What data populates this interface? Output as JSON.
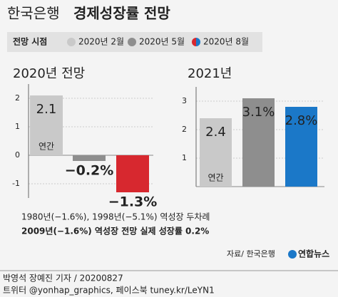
{
  "header": {
    "title_light": "한국은행",
    "title_bold": "경제성장률 전망"
  },
  "legend": {
    "title": "전망 시점",
    "items": [
      {
        "name": "2020년 2월",
        "color": "#c9c9c9"
      },
      {
        "name": "2020년 5월",
        "color": "#8e8e8e"
      },
      {
        "name": "2020년 8월",
        "colors": [
          "#d7282f",
          "#1b78c8"
        ]
      }
    ]
  },
  "chart_data": [
    {
      "type": "bar",
      "title": "2020년 전망",
      "values": [
        2.1,
        -0.2,
        -1.3
      ],
      "value_labels": [
        "2.1",
        "−0.2%",
        "−1.3%"
      ],
      "colors": [
        "#c9c9c9",
        "#8e8e8e",
        "#d7282f"
      ],
      "annotation": "연간",
      "ylim": [
        -1.5,
        2.5
      ],
      "yticks": [
        -1,
        0,
        1,
        2
      ],
      "grid": true
    },
    {
      "type": "bar",
      "title": "2021년",
      "values": [
        2.4,
        3.1,
        2.8
      ],
      "value_labels": [
        "2.4",
        "3.1%",
        "2.8%"
      ],
      "colors": [
        "#c9c9c9",
        "#8e8e8e",
        "#1b78c8"
      ],
      "annotation": "연간",
      "ylim": [
        0,
        3.5
      ],
      "yticks": [
        1,
        2,
        3
      ],
      "grid": true
    }
  ],
  "notes": [
    "1980년(−1.6%), 1998년(−5.1%) 역성장 두차례",
    "2009년(−1.6%) 역성장 전망 실제 성장률 0.2%"
  ],
  "source": "자료/ 한국은행",
  "logo": "연합뉴스",
  "footer": [
    "박영석 장예진 기자 / 20200827",
    "트위터 @yonhap_graphics, 페이스북 tuney.kr/LeYN1"
  ]
}
